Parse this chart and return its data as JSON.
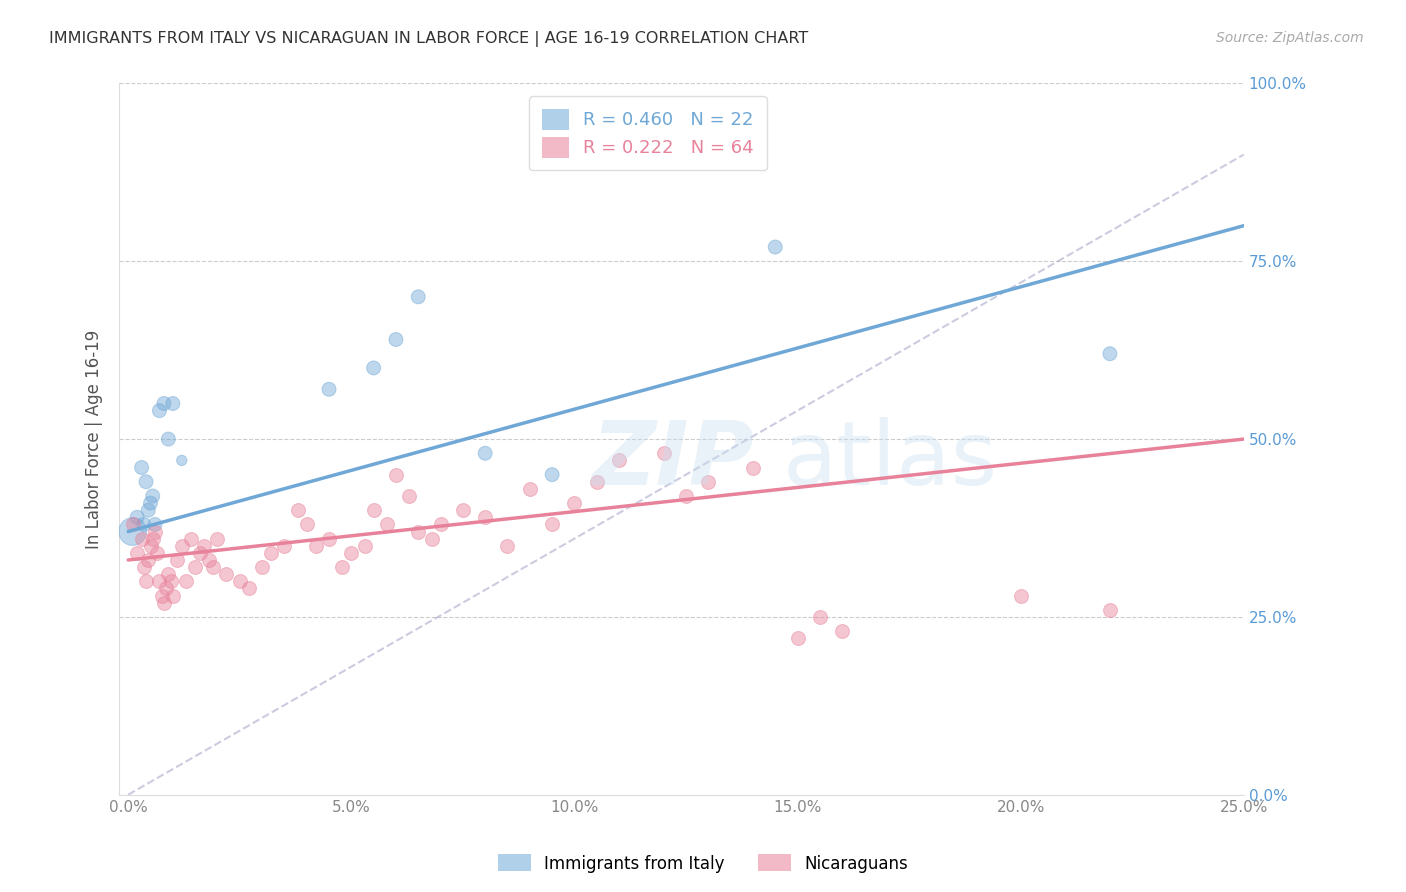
{
  "title": "IMMIGRANTS FROM ITALY VS NICARAGUAN IN LABOR FORCE | AGE 16-19 CORRELATION CHART",
  "source": "Source: ZipAtlas.com",
  "ylabel": "In Labor Force | Age 16-19",
  "xlim": [
    -0.2,
    25.0
  ],
  "ylim": [
    0.0,
    100.0
  ],
  "xticks": [
    0.0,
    5.0,
    10.0,
    15.0,
    20.0,
    25.0
  ],
  "yticks": [
    0.0,
    25.0,
    50.0,
    75.0,
    100.0
  ],
  "xticklabels": [
    "0.0%",
    "5.0%",
    "10.0%",
    "15.0%",
    "20.0%",
    "25.0%"
  ],
  "yticklabels_right": [
    "0.0%",
    "25.0%",
    "50.0%",
    "75.0%",
    "100.0%"
  ],
  "italy_color": "#6fa8d6",
  "nicaragua_color": "#e8829a",
  "italy_R": 0.46,
  "italy_N": 22,
  "nicaragua_R": 0.222,
  "nicaragua_N": 64,
  "italy_scatter_x": [
    0.1,
    0.2,
    0.3,
    0.35,
    0.4,
    0.45,
    0.5,
    0.55,
    0.6,
    0.7,
    0.8,
    0.9,
    1.0,
    1.2,
    4.5,
    5.5,
    6.0,
    6.5,
    8.0,
    9.5,
    14.5,
    22.0
  ],
  "italy_scatter_y": [
    37,
    39,
    46,
    38,
    44,
    40,
    41,
    42,
    38,
    54,
    55,
    50,
    55,
    47,
    57,
    60,
    64,
    70,
    48,
    45,
    77,
    62
  ],
  "italy_scatter_size": [
    400,
    100,
    100,
    100,
    100,
    100,
    100,
    100,
    100,
    100,
    100,
    100,
    100,
    55,
    100,
    100,
    100,
    100,
    100,
    100,
    100,
    100
  ],
  "nicaragua_scatter_x": [
    0.1,
    0.2,
    0.3,
    0.35,
    0.4,
    0.45,
    0.5,
    0.55,
    0.6,
    0.65,
    0.7,
    0.75,
    0.8,
    0.85,
    0.9,
    0.95,
    1.0,
    1.1,
    1.2,
    1.3,
    1.4,
    1.5,
    1.6,
    1.7,
    1.8,
    1.9,
    2.0,
    2.2,
    2.5,
    2.7,
    3.0,
    3.2,
    3.5,
    3.8,
    4.0,
    4.2,
    4.5,
    4.8,
    5.0,
    5.3,
    5.5,
    5.8,
    6.0,
    6.3,
    6.5,
    6.8,
    7.0,
    7.5,
    8.0,
    8.5,
    9.0,
    9.5,
    10.0,
    10.5,
    11.0,
    12.0,
    12.5,
    13.0,
    14.0,
    15.0,
    15.5,
    16.0,
    20.0,
    22.0
  ],
  "nicaragua_scatter_y": [
    38,
    34,
    36,
    32,
    30,
    33,
    35,
    36,
    37,
    34,
    30,
    28,
    27,
    29,
    31,
    30,
    28,
    33,
    35,
    30,
    36,
    32,
    34,
    35,
    33,
    32,
    36,
    31,
    30,
    29,
    32,
    34,
    35,
    40,
    38,
    35,
    36,
    32,
    34,
    35,
    40,
    38,
    45,
    42,
    37,
    36,
    38,
    40,
    39,
    35,
    43,
    38,
    41,
    44,
    47,
    48,
    42,
    44,
    46,
    22,
    25,
    23,
    28,
    26
  ],
  "italy_line_x": [
    0.0,
    25.0
  ],
  "italy_line_y": [
    37.0,
    80.0
  ],
  "nicaragua_line_x": [
    0.0,
    25.0
  ],
  "nicaragua_line_y": [
    33.0,
    50.0
  ],
  "diag_line_x": [
    0.0,
    25.0
  ],
  "diag_line_y": [
    0.0,
    90.0
  ],
  "background_color": "#ffffff",
  "grid_color": "#cccccc",
  "title_color": "#333333",
  "axis_label_color": "#555555",
  "tick_color_right": "#5b9bd5",
  "tick_color_bottom": "#888888",
  "legend_italy_label": "R = 0.460   N = 22",
  "legend_nicaragua_label": "R = 0.222   N = 64",
  "legend_bottom_italy": "Immigrants from Italy",
  "legend_bottom_nicaragua": "Nicaraguans"
}
